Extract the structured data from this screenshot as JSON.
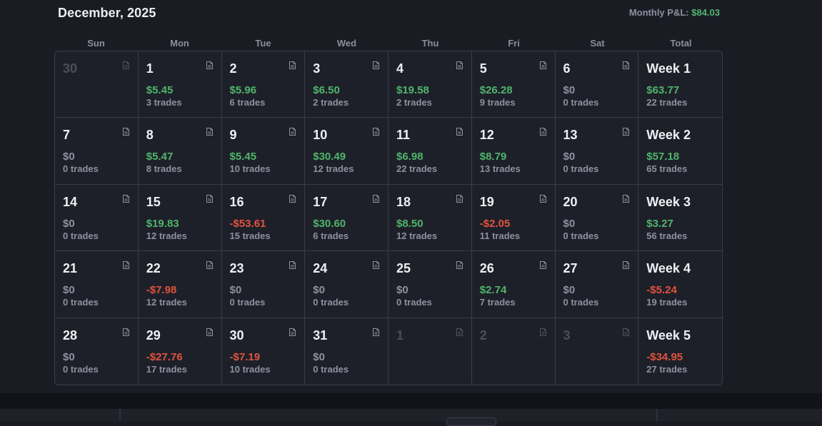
{
  "header": {
    "title": "December, 2025",
    "monthly_label": "Monthly P&L:",
    "monthly_value": "$84.03"
  },
  "weekdays": [
    "Sun",
    "Mon",
    "Tue",
    "Wed",
    "Thu",
    "Fri",
    "Sat",
    "Total"
  ],
  "colors": {
    "positive": "#4fb56c",
    "negative": "#e0533f",
    "neutral": "#8d91a0"
  },
  "weeks": [
    {
      "days": [
        {
          "day": "30",
          "muted": true
        },
        {
          "day": "1",
          "pnl": "$5.45",
          "trades": "3 trades",
          "sign": "pos"
        },
        {
          "day": "2",
          "pnl": "$5.96",
          "trades": "6 trades",
          "sign": "pos"
        },
        {
          "day": "3",
          "pnl": "$6.50",
          "trades": "2 trades",
          "sign": "pos"
        },
        {
          "day": "4",
          "pnl": "$19.58",
          "trades": "2 trades",
          "sign": "pos"
        },
        {
          "day": "5",
          "pnl": "$26.28",
          "trades": "9 trades",
          "sign": "pos"
        },
        {
          "day": "6",
          "pnl": "$0",
          "trades": "0 trades",
          "sign": "zero"
        }
      ],
      "total": {
        "label": "Week 1",
        "pnl": "$63.77",
        "trades": "22 trades",
        "sign": "pos"
      }
    },
    {
      "days": [
        {
          "day": "7",
          "pnl": "$0",
          "trades": "0 trades",
          "sign": "zero"
        },
        {
          "day": "8",
          "pnl": "$5.47",
          "trades": "8 trades",
          "sign": "pos"
        },
        {
          "day": "9",
          "pnl": "$5.45",
          "trades": "10 trades",
          "sign": "pos"
        },
        {
          "day": "10",
          "pnl": "$30.49",
          "trades": "12 trades",
          "sign": "pos"
        },
        {
          "day": "11",
          "pnl": "$6.98",
          "trades": "22 trades",
          "sign": "pos"
        },
        {
          "day": "12",
          "pnl": "$8.79",
          "trades": "13 trades",
          "sign": "pos"
        },
        {
          "day": "13",
          "pnl": "$0",
          "trades": "0 trades",
          "sign": "zero"
        }
      ],
      "total": {
        "label": "Week 2",
        "pnl": "$57.18",
        "trades": "65 trades",
        "sign": "pos"
      }
    },
    {
      "days": [
        {
          "day": "14",
          "pnl": "$0",
          "trades": "0 trades",
          "sign": "zero"
        },
        {
          "day": "15",
          "pnl": "$19.83",
          "trades": "12 trades",
          "sign": "pos"
        },
        {
          "day": "16",
          "pnl": "-$53.61",
          "trades": "15 trades",
          "sign": "neg"
        },
        {
          "day": "17",
          "pnl": "$30.60",
          "trades": "6 trades",
          "sign": "pos"
        },
        {
          "day": "18",
          "pnl": "$8.50",
          "trades": "12 trades",
          "sign": "pos"
        },
        {
          "day": "19",
          "pnl": "-$2.05",
          "trades": "11 trades",
          "sign": "neg"
        },
        {
          "day": "20",
          "pnl": "$0",
          "trades": "0 trades",
          "sign": "zero"
        }
      ],
      "total": {
        "label": "Week 3",
        "pnl": "$3.27",
        "trades": "56 trades",
        "sign": "pos"
      }
    },
    {
      "days": [
        {
          "day": "21",
          "pnl": "$0",
          "trades": "0 trades",
          "sign": "zero"
        },
        {
          "day": "22",
          "pnl": "-$7.98",
          "trades": "12 trades",
          "sign": "neg"
        },
        {
          "day": "23",
          "pnl": "$0",
          "trades": "0 trades",
          "sign": "zero"
        },
        {
          "day": "24",
          "pnl": "$0",
          "trades": "0 trades",
          "sign": "zero"
        },
        {
          "day": "25",
          "pnl": "$0",
          "trades": "0 trades",
          "sign": "zero"
        },
        {
          "day": "26",
          "pnl": "$2.74",
          "trades": "7 trades",
          "sign": "pos"
        },
        {
          "day": "27",
          "pnl": "$0",
          "trades": "0 trades",
          "sign": "zero"
        }
      ],
      "total": {
        "label": "Week 4",
        "pnl": "-$5.24",
        "trades": "19 trades",
        "sign": "neg"
      }
    },
    {
      "days": [
        {
          "day": "28",
          "pnl": "$0",
          "trades": "0 trades",
          "sign": "zero"
        },
        {
          "day": "29",
          "pnl": "-$27.76",
          "trades": "17 trades",
          "sign": "neg"
        },
        {
          "day": "30",
          "pnl": "-$7.19",
          "trades": "10 trades",
          "sign": "neg"
        },
        {
          "day": "31",
          "pnl": "$0",
          "trades": "0 trades",
          "sign": "zero"
        },
        {
          "day": "1",
          "muted": true
        },
        {
          "day": "2",
          "muted": true
        },
        {
          "day": "3",
          "muted": true
        }
      ],
      "total": {
        "label": "Week 5",
        "pnl": "-$34.95",
        "trades": "27 trades",
        "sign": "neg"
      }
    }
  ]
}
